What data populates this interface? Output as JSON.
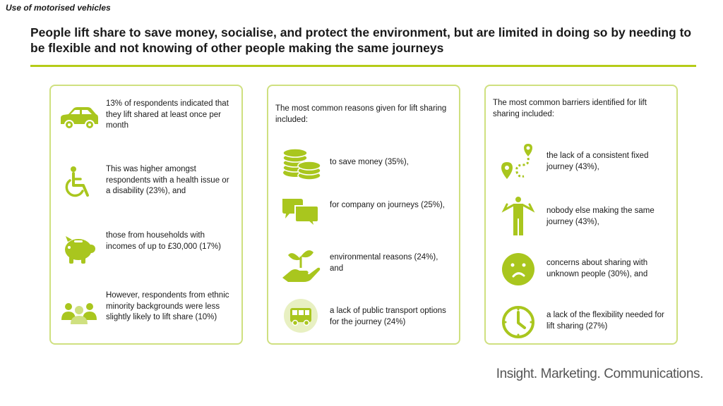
{
  "section_label": "Use of motorised vehicles",
  "headline": "People lift share to save money, socialise, and protect the environment, but are limited in doing so by needing to be flexible and not knowing of other people making the same journeys",
  "colors": {
    "accent": "#b5cc18",
    "card_border": "#cfe080",
    "icon_green": "#a9c61e"
  },
  "cards": [
    {
      "items": [
        {
          "icon": "car-icon",
          "text": "13% of respondents indicated that they lift shared at least once per month"
        },
        {
          "icon": "wheelchair-icon",
          "text": "This was higher amongst respondents with a health issue or a disability (23%), and"
        },
        {
          "icon": "piggy-bank-icon",
          "text": "those from households with incomes of up to £30,000 (17%)"
        },
        {
          "icon": "group-icon",
          "text": "However, respondents from ethnic minority backgrounds were less slightly likely to lift share (10%)"
        }
      ]
    },
    {
      "intro": "The most common reasons given for lift sharing included:",
      "items": [
        {
          "icon": "coins-icon",
          "text": "to save money (35%),"
        },
        {
          "icon": "speech-bubbles-icon",
          "text": "for company on journeys (25%),"
        },
        {
          "icon": "plant-hand-icon",
          "text": "environmental reasons (24%), and"
        },
        {
          "icon": "bus-icon",
          "text": "a lack of public transport options for the journey (24%)"
        }
      ]
    },
    {
      "intro": "The most common barriers identified for lift sharing included:",
      "items": [
        {
          "icon": "route-icon",
          "text": "the lack of a consistent fixed journey (43%),"
        },
        {
          "icon": "shrugging-person-icon",
          "text": "nobody else making the same journey (43%),"
        },
        {
          "icon": "worried-face-icon",
          "text": "concerns about sharing with unknown people (30%), and"
        },
        {
          "icon": "clock-icon",
          "text": "a lack of the flexibility needed for lift sharing (27%)"
        }
      ]
    }
  ],
  "brand": "Insight. Marketing. Communications."
}
